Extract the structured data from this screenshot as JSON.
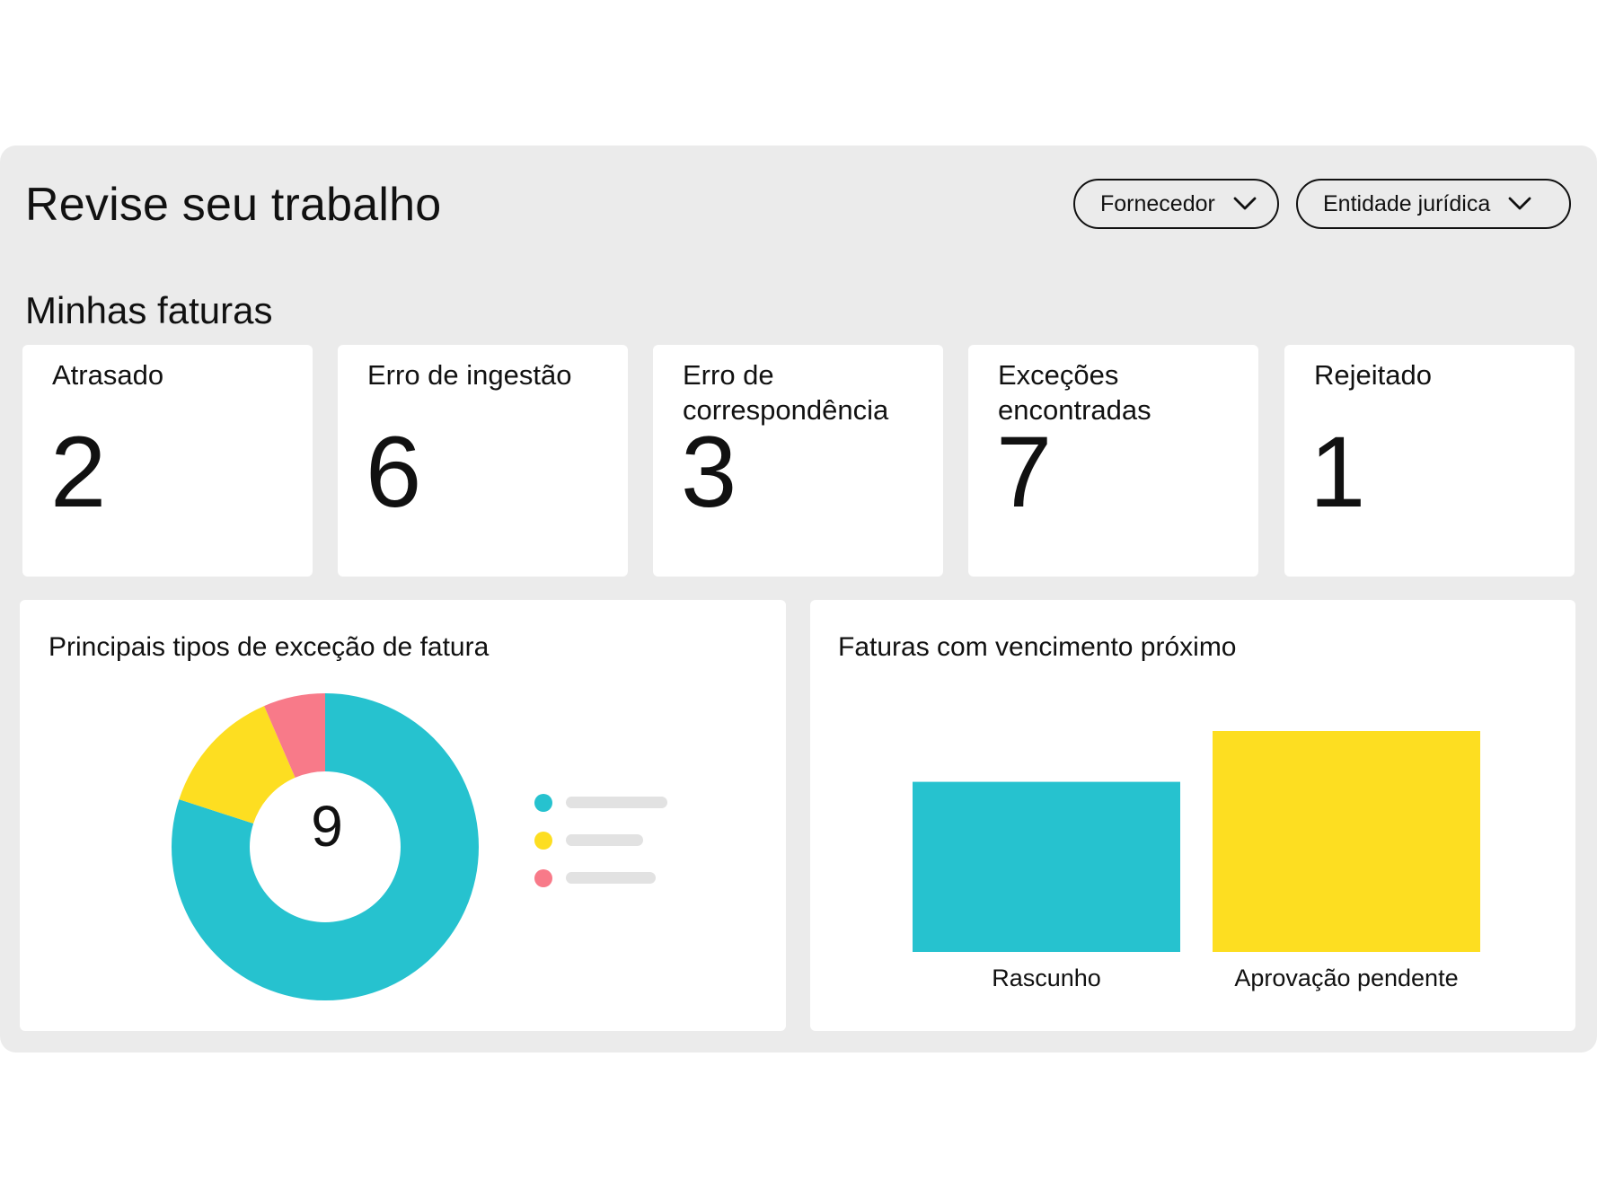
{
  "header": {
    "title": "Revise seu trabalho",
    "filters": [
      {
        "label": "Fornecedor"
      },
      {
        "label": "Entidade jurídica"
      }
    ]
  },
  "invoices": {
    "section_title": "Minhas faturas",
    "kpis": [
      {
        "label": "Atrasado",
        "value": "2"
      },
      {
        "label": "Erro de ingestão",
        "value": "6"
      },
      {
        "label": "Erro de correspondência",
        "value": "3"
      },
      {
        "label": "Exceções encontradas",
        "value": "7"
      },
      {
        "label": "Rejeitado",
        "value": "1"
      }
    ]
  },
  "exceptions_chart": {
    "title": "Principais tipos de exceção de fatura",
    "center_value": "9"
  },
  "due_chart": {
    "title": "Faturas com vencimento próximo"
  },
  "colors": {
    "teal": "#26c2cf",
    "yellow": "#fdde21",
    "pink": "#f87a89",
    "panel": "#ebebeb"
  },
  "chart_data": [
    {
      "type": "pie",
      "title": "Principais tipos de exceção de fatura",
      "total": 9,
      "slices": [
        {
          "share": 0.8,
          "color": "#26c2cf"
        },
        {
          "share": 0.135,
          "color": "#fdde21"
        },
        {
          "share": 0.065,
          "color": "#f87a89"
        }
      ]
    },
    {
      "type": "bar",
      "title": "Faturas com vencimento próximo",
      "categories": [
        "Rascunho",
        "Aprovação pendente"
      ],
      "values": [
        0.77,
        1.0
      ],
      "colors": [
        "#26c2cf",
        "#fdde21"
      ]
    }
  ]
}
